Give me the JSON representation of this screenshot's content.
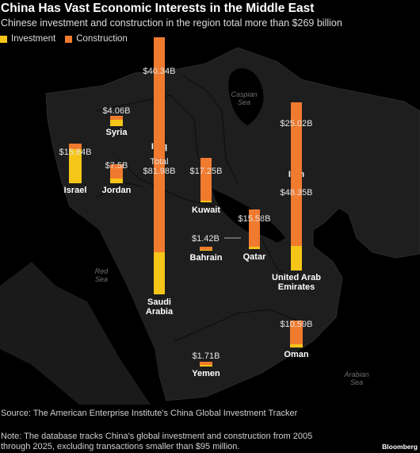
{
  "header": {
    "title": "China Has Vast Economic Interests in the Middle East",
    "subtitle": "Chinese investment and construction in the region total more than $269 billion"
  },
  "colors": {
    "investment": "#F5C518",
    "construction": "#F07A2E",
    "land": "#1e1e1e",
    "background": "#000000"
  },
  "chart_data": {
    "type": "bar",
    "legend": {
      "position": "top-left",
      "entries": [
        "Investment",
        "Construction"
      ]
    },
    "series_names": [
      "Investment",
      "Construction"
    ],
    "countries": [
      {
        "name": "Iraq",
        "total": 40.34,
        "total_label": "$40.34B",
        "investment": 12.0,
        "construction": 28.34
      },
      {
        "name": "Syria",
        "total": 4.06,
        "total_label": "$4.06B",
        "investment": 2.5,
        "construction": 1.56
      },
      {
        "name": "Israel",
        "total": 15.64,
        "total_label": "$15.64B",
        "investment": 13.5,
        "construction": 2.14
      },
      {
        "name": "Jordan",
        "total": 7.5,
        "total_label": "$7.5B",
        "investment": 2.0,
        "construction": 5.5
      },
      {
        "name": "Saudi Arabia",
        "total": 81.98,
        "total_label": "$81.98B",
        "total_prefix": "Total",
        "investment": 16.5,
        "construction": 65.48
      },
      {
        "name": "Kuwait",
        "total": 17.25,
        "total_label": "$17.25B",
        "investment": 0.5,
        "construction": 16.75
      },
      {
        "name": "Iran",
        "total": 25.02,
        "total_label": "$25.02B",
        "investment": 5.5,
        "construction": 19.52
      },
      {
        "name": "Qatar",
        "total": 15.58,
        "total_label": "$15.58B",
        "investment": 1.0,
        "construction": 14.58
      },
      {
        "name": "Bahrain",
        "total": 1.42,
        "total_label": "$1.42B",
        "investment": 0.4,
        "construction": 1.02
      },
      {
        "name": "United Arab Emirates",
        "total": 48.35,
        "total_label": "$48.35B",
        "investment": 9.5,
        "construction": 38.85
      },
      {
        "name": "Oman",
        "total": 10.59,
        "total_label": "$10.59B",
        "investment": 1.3,
        "construction": 9.29
      },
      {
        "name": "Yemen",
        "total": 1.71,
        "total_label": "$1.71B",
        "investment": 0.5,
        "construction": 1.21
      }
    ]
  },
  "map_labels": {
    "caspian": "Caspian Sea",
    "red": "Red Sea",
    "arabian": "Arabian Sea"
  },
  "footer": {
    "source": "Source: The American Enterprise Institute's China Global Investment Tracker",
    "note": "Note: The database tracks China's global investment and construction from 2005 through 2025, excluding transactions smaller than $95 million.",
    "brand": "Bloomberg"
  }
}
